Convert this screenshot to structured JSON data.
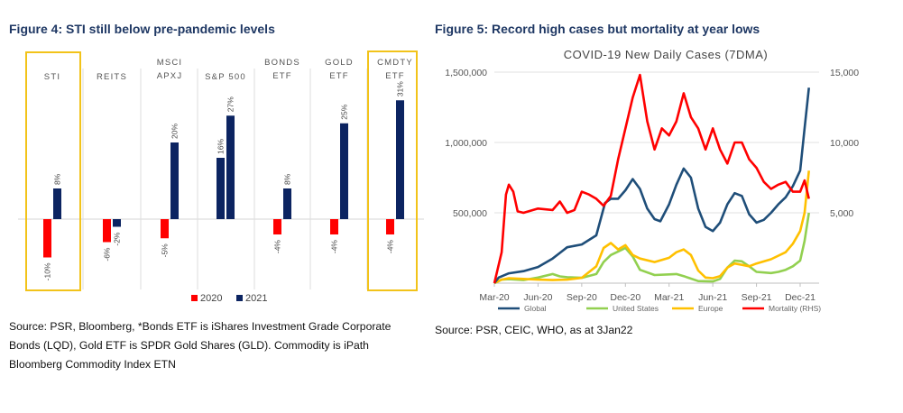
{
  "left_figure": {
    "title": "Figure 4: STI still below pre-pandemic levels",
    "source": "Source: PSR, Bloomberg, *Bonds ETF is iShares Investment Grade Corporate Bonds (LQD), Gold ETF is SPDR Gold Shares (GLD). Commodity is  iPath Bloomberg Commodity Index ETN"
  },
  "right_figure": {
    "title": "Figure 5: Record high cases but mortality at year lows",
    "source": "Source:  PSR, CEIC, WHO, as at 3Jan22"
  },
  "colors": {
    "y2020": "#ff0000",
    "y2021": "#0c2461",
    "highlight": "#f2c31a",
    "global": "#1f4e79",
    "us": "#92d050",
    "europe": "#ffc000",
    "mortality": "#ff0000"
  },
  "chart_data": [
    {
      "type": "bar",
      "title": "",
      "categories": [
        [
          "STI"
        ],
        [
          "REITS"
        ],
        [
          "MSCI",
          "APXJ"
        ],
        [
          "S&P 500"
        ],
        [
          "BONDS",
          "ETF"
        ],
        [
          "GOLD",
          "ETF"
        ],
        [
          "CMDTY",
          "ETF"
        ]
      ],
      "highlighted_categories": [
        "STI",
        "CMDTY ETF"
      ],
      "series": [
        {
          "name": "2020",
          "values": [
            -10,
            -6,
            -5,
            null,
            -4,
            -4,
            -4
          ]
        },
        {
          "name": "2021",
          "values": [
            8,
            -2,
            20,
            16,
            8,
            25,
            31
          ]
        },
        {
          "name": "",
          "values": [
            null,
            null,
            null,
            27,
            null,
            null,
            null
          ]
        }
      ],
      "data_labels": [
        [
          "-10%",
          "8%",
          null
        ],
        [
          "-6%",
          "-2%",
          null
        ],
        [
          "-5%",
          "20%",
          null
        ],
        [
          null,
          "16%",
          "27%"
        ],
        [
          "-4%",
          "8%",
          null
        ],
        [
          "-4%",
          "25%",
          null
        ],
        [
          "-4%",
          "31%",
          null
        ]
      ],
      "legend": [
        "2020",
        "2021"
      ],
      "legend_position": "bottom"
    },
    {
      "type": "line",
      "title": "COVID-19 New Daily Cases (7DMA)",
      "x_ticks": [
        "Mar-20",
        "Jun-20",
        "Sep-20",
        "Dec-20",
        "Mar-21",
        "Jun-21",
        "Sep-21",
        "Dec-21"
      ],
      "x_range": [
        0,
        22.3
      ],
      "y_left": {
        "range": [
          0,
          1500000
        ],
        "ticks": [
          500000,
          1000000,
          1500000
        ],
        "tick_labels": [
          "500,000",
          "1,000,000",
          "1,500,000"
        ]
      },
      "y_right": {
        "range": [
          0,
          15000
        ],
        "ticks": [
          5000,
          10000,
          15000
        ],
        "tick_labels": [
          "5,000",
          "10,000",
          "15,000"
        ],
        "label": "RHS"
      },
      "series": [
        {
          "name": "Global",
          "axis": "left",
          "points": [
            [
              0,
              0
            ],
            [
              0.3,
              40000
            ],
            [
              1,
              70000
            ],
            [
              2,
              85000
            ],
            [
              3,
              115000
            ],
            [
              4,
              175000
            ],
            [
              4.5,
              215000
            ],
            [
              5,
              255000
            ],
            [
              6,
              275000
            ],
            [
              7,
              340000
            ],
            [
              7.6,
              570000
            ],
            [
              8,
              600000
            ],
            [
              8.5,
              600000
            ],
            [
              9,
              660000
            ],
            [
              9.5,
              740000
            ],
            [
              10,
              670000
            ],
            [
              10.5,
              530000
            ],
            [
              11,
              455000
            ],
            [
              11.4,
              440000
            ],
            [
              12,
              560000
            ],
            [
              12.5,
              700000
            ],
            [
              13,
              815000
            ],
            [
              13.5,
              750000
            ],
            [
              14,
              530000
            ],
            [
              14.5,
              400000
            ],
            [
              15,
              370000
            ],
            [
              15.5,
              430000
            ],
            [
              16,
              560000
            ],
            [
              16.5,
              640000
            ],
            [
              17,
              620000
            ],
            [
              17.5,
              490000
            ],
            [
              18,
              430000
            ],
            [
              18.5,
              450000
            ],
            [
              19,
              500000
            ],
            [
              19.5,
              560000
            ],
            [
              20,
              610000
            ],
            [
              20.5,
              690000
            ],
            [
              21,
              800000
            ],
            [
              21.3,
              1100000
            ],
            [
              21.6,
              1390000
            ]
          ]
        },
        {
          "name": "United States",
          "axis": "left",
          "points": [
            [
              0,
              0
            ],
            [
              0.5,
              25000
            ],
            [
              1,
              28000
            ],
            [
              2,
              22000
            ],
            [
              3,
              40000
            ],
            [
              4,
              65000
            ],
            [
              4.5,
              48000
            ],
            [
              5,
              42000
            ],
            [
              6,
              38000
            ],
            [
              7,
              65000
            ],
            [
              7.5,
              150000
            ],
            [
              8,
              200000
            ],
            [
              8.5,
              225000
            ],
            [
              9,
              250000
            ],
            [
              9.5,
              190000
            ],
            [
              10,
              95000
            ],
            [
              11,
              58000
            ],
            [
              12,
              62000
            ],
            [
              12.5,
              65000
            ],
            [
              13,
              50000
            ],
            [
              14,
              15000
            ],
            [
              15,
              12000
            ],
            [
              15.5,
              30000
            ],
            [
              16,
              110000
            ],
            [
              16.5,
              160000
            ],
            [
              17,
              155000
            ],
            [
              17.5,
              120000
            ],
            [
              18,
              80000
            ],
            [
              19,
              72000
            ],
            [
              19.5,
              80000
            ],
            [
              20,
              95000
            ],
            [
              20.5,
              120000
            ],
            [
              21,
              160000
            ],
            [
              21.3,
              300000
            ],
            [
              21.6,
              500000
            ]
          ]
        },
        {
          "name": "Europe",
          "axis": "left",
          "points": [
            [
              0,
              0
            ],
            [
              0.5,
              25000
            ],
            [
              1,
              35000
            ],
            [
              2,
              30000
            ],
            [
              3,
              25000
            ],
            [
              4,
              22000
            ],
            [
              5,
              25000
            ],
            [
              6,
              38000
            ],
            [
              7,
              120000
            ],
            [
              7.5,
              250000
            ],
            [
              8,
              285000
            ],
            [
              8.5,
              240000
            ],
            [
              9,
              270000
            ],
            [
              9.5,
              200000
            ],
            [
              10,
              175000
            ],
            [
              11,
              150000
            ],
            [
              12,
              180000
            ],
            [
              12.5,
              220000
            ],
            [
              13,
              240000
            ],
            [
              13.5,
              200000
            ],
            [
              14,
              90000
            ],
            [
              14.5,
              40000
            ],
            [
              15,
              35000
            ],
            [
              15.5,
              50000
            ],
            [
              16,
              110000
            ],
            [
              16.5,
              140000
            ],
            [
              17,
              130000
            ],
            [
              17.5,
              120000
            ],
            [
              18,
              140000
            ],
            [
              19,
              170000
            ],
            [
              20,
              220000
            ],
            [
              20.5,
              280000
            ],
            [
              21,
              370000
            ],
            [
              21.3,
              500000
            ],
            [
              21.6,
              800000
            ]
          ]
        },
        {
          "name": "Mortality (RHS)",
          "axis": "right",
          "points": [
            [
              0,
              0
            ],
            [
              0.5,
              2200
            ],
            [
              0.8,
              6300
            ],
            [
              1,
              7000
            ],
            [
              1.3,
              6500
            ],
            [
              1.6,
              5100
            ],
            [
              2,
              5000
            ],
            [
              3,
              5300
            ],
            [
              4,
              5200
            ],
            [
              4.5,
              5800
            ],
            [
              5,
              5000
            ],
            [
              5.5,
              5200
            ],
            [
              6,
              6500
            ],
            [
              6.5,
              6300
            ],
            [
              7,
              6000
            ],
            [
              7.5,
              5500
            ],
            [
              8,
              6200
            ],
            [
              8.5,
              8800
            ],
            [
              9,
              11000
            ],
            [
              9.5,
              13200
            ],
            [
              10,
              14800
            ],
            [
              10.5,
              11500
            ],
            [
              11,
              9500
            ],
            [
              11.5,
              11000
            ],
            [
              12,
              10500
            ],
            [
              12.5,
              11500
            ],
            [
              13,
              13500
            ],
            [
              13.5,
              11800
            ],
            [
              14,
              11000
            ],
            [
              14.5,
              9500
            ],
            [
              15,
              11000
            ],
            [
              15.5,
              9500
            ],
            [
              16,
              8500
            ],
            [
              16.5,
              10000
            ],
            [
              17,
              10000
            ],
            [
              17.5,
              8800
            ],
            [
              18,
              8200
            ],
            [
              18.5,
              7200
            ],
            [
              19,
              6700
            ],
            [
              19.5,
              7000
            ],
            [
              20,
              7200
            ],
            [
              20.5,
              6500
            ],
            [
              21,
              6500
            ],
            [
              21.3,
              7300
            ],
            [
              21.6,
              6000
            ]
          ]
        }
      ],
      "legend": [
        "Global",
        "United States",
        "Europe",
        "Mortality (RHS)"
      ],
      "legend_position": "bottom"
    }
  ]
}
